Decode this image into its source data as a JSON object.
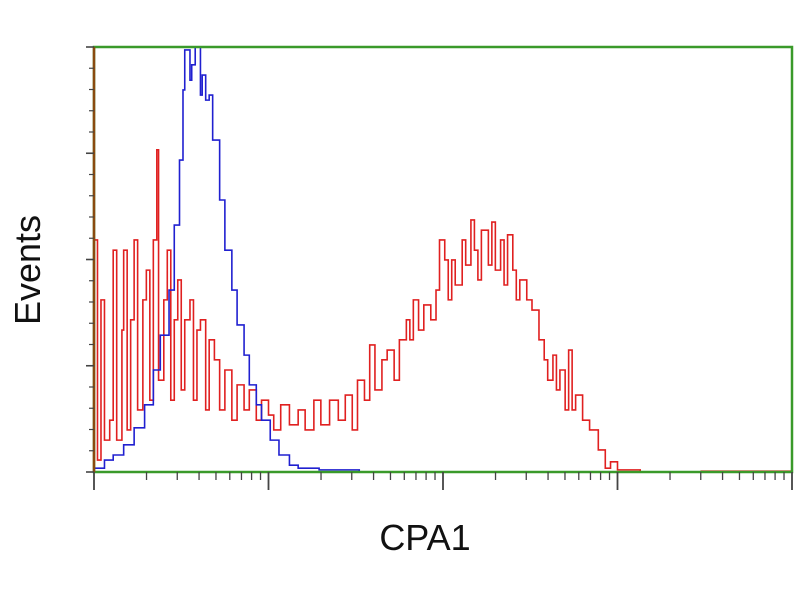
{
  "chart_data": {
    "type": "line",
    "title": "",
    "xlabel": "CPA1",
    "ylabel": "Events",
    "x_scale": "log",
    "x_decades": [
      0,
      4
    ],
    "ylim": [
      0,
      100
    ],
    "grid": false,
    "legend": "none",
    "colors": {
      "frame": "#3a9a2a",
      "left_axis": "#8a4a10",
      "series_red": "#e02020",
      "series_blue": "#2020d0"
    },
    "series": [
      {
        "color": "#e02020",
        "points": [
          [
            0.0,
            54.6
          ],
          [
            0.02,
            2.8
          ],
          [
            0.04,
            40.5
          ],
          [
            0.06,
            7.5
          ],
          [
            0.09,
            12.2
          ],
          [
            0.11,
            52.2
          ],
          [
            0.13,
            7.5
          ],
          [
            0.16,
            33.4
          ],
          [
            0.17,
            52.2
          ],
          [
            0.19,
            9.9
          ],
          [
            0.21,
            35.8
          ],
          [
            0.23,
            54.6
          ],
          [
            0.25,
            14.6
          ],
          [
            0.28,
            40.5
          ],
          [
            0.3,
            47.5
          ],
          [
            0.32,
            16.9
          ],
          [
            0.34,
            54.6
          ],
          [
            0.36,
            75.8
          ],
          [
            0.37,
            21.6
          ],
          [
            0.4,
            40.5
          ],
          [
            0.42,
            52.2
          ],
          [
            0.44,
            16.9
          ],
          [
            0.46,
            35.8
          ],
          [
            0.48,
            45.2
          ],
          [
            0.5,
            19.3
          ],
          [
            0.52,
            35.8
          ],
          [
            0.55,
            40.5
          ],
          [
            0.57,
            16.9
          ],
          [
            0.59,
            33.4
          ],
          [
            0.61,
            35.8
          ],
          [
            0.64,
            14.6
          ],
          [
            0.66,
            31.1
          ],
          [
            0.69,
            26.4
          ],
          [
            0.72,
            14.6
          ],
          [
            0.75,
            24.0
          ],
          [
            0.79,
            12.2
          ],
          [
            0.82,
            20.5
          ],
          [
            0.86,
            14.6
          ],
          [
            0.89,
            19.3
          ],
          [
            0.93,
            12.2
          ],
          [
            0.96,
            16.9
          ],
          [
            1.0,
            13.4
          ],
          [
            1.03,
            9.9
          ],
          [
            1.07,
            15.8
          ],
          [
            1.12,
            11.1
          ],
          [
            1.17,
            14.6
          ],
          [
            1.21,
            9.9
          ],
          [
            1.26,
            16.9
          ],
          [
            1.3,
            11.1
          ],
          [
            1.35,
            16.9
          ],
          [
            1.4,
            12.2
          ],
          [
            1.44,
            18.1
          ],
          [
            1.48,
            9.9
          ],
          [
            1.51,
            21.6
          ],
          [
            1.55,
            16.9
          ],
          [
            1.58,
            29.9
          ],
          [
            1.61,
            19.3
          ],
          [
            1.65,
            26.4
          ],
          [
            1.68,
            28.7
          ],
          [
            1.72,
            21.6
          ],
          [
            1.75,
            31.1
          ],
          [
            1.79,
            35.8
          ],
          [
            1.81,
            31.1
          ],
          [
            1.83,
            40.5
          ],
          [
            1.86,
            33.4
          ],
          [
            1.89,
            39.3
          ],
          [
            1.93,
            35.8
          ],
          [
            1.96,
            42.8
          ],
          [
            1.98,
            54.6
          ],
          [
            2.01,
            49.9
          ],
          [
            2.03,
            40.5
          ],
          [
            2.05,
            49.9
          ],
          [
            2.07,
            44.0
          ],
          [
            2.11,
            54.6
          ],
          [
            2.13,
            48.7
          ],
          [
            2.16,
            59.3
          ],
          [
            2.18,
            52.2
          ],
          [
            2.2,
            45.2
          ],
          [
            2.22,
            56.9
          ],
          [
            2.26,
            48.7
          ],
          [
            2.28,
            58.8
          ],
          [
            2.3,
            47.5
          ],
          [
            2.33,
            54.6
          ],
          [
            2.35,
            44.0
          ],
          [
            2.37,
            55.8
          ],
          [
            2.4,
            47.5
          ],
          [
            2.42,
            40.5
          ],
          [
            2.44,
            45.2
          ],
          [
            2.48,
            40.5
          ],
          [
            2.51,
            38.1
          ],
          [
            2.55,
            31.1
          ],
          [
            2.58,
            26.4
          ],
          [
            2.6,
            21.6
          ],
          [
            2.63,
            27.5
          ],
          [
            2.65,
            19.3
          ],
          [
            2.67,
            24.0
          ],
          [
            2.7,
            14.6
          ],
          [
            2.72,
            28.7
          ],
          [
            2.74,
            14.6
          ],
          [
            2.76,
            18.1
          ],
          [
            2.8,
            12.2
          ],
          [
            2.84,
            9.9
          ],
          [
            2.89,
            5.2
          ],
          [
            2.93,
            0.9
          ],
          [
            2.96,
            2.4
          ],
          [
            3.0,
            0.5
          ],
          [
            3.13,
            0
          ],
          [
            3.48,
            0.2
          ],
          [
            4.0,
            0.2
          ]
        ]
      },
      {
        "color": "#2020d0",
        "points": [
          [
            0.0,
            0.9
          ],
          [
            0.06,
            2.8
          ],
          [
            0.11,
            4.0
          ],
          [
            0.17,
            6.4
          ],
          [
            0.23,
            10.4
          ],
          [
            0.29,
            15.8
          ],
          [
            0.34,
            24.0
          ],
          [
            0.38,
            32.2
          ],
          [
            0.43,
            42.8
          ],
          [
            0.46,
            58.1
          ],
          [
            0.49,
            73.4
          ],
          [
            0.51,
            89.9
          ],
          [
            0.52,
            99.3
          ],
          [
            0.55,
            92.2
          ],
          [
            0.56,
            95.8
          ],
          [
            0.58,
            100
          ],
          [
            0.61,
            88.7
          ],
          [
            0.62,
            93.4
          ],
          [
            0.64,
            87.5
          ],
          [
            0.66,
            88.7
          ],
          [
            0.68,
            78.1
          ],
          [
            0.72,
            64.0
          ],
          [
            0.75,
            52.2
          ],
          [
            0.79,
            42.8
          ],
          [
            0.82,
            34.6
          ],
          [
            0.86,
            27.5
          ],
          [
            0.89,
            20.5
          ],
          [
            0.93,
            15.8
          ],
          [
            0.96,
            12.2
          ],
          [
            1.01,
            7.5
          ],
          [
            1.06,
            4.0
          ],
          [
            1.12,
            1.6
          ],
          [
            1.17,
            0.9
          ],
          [
            1.29,
            0.5
          ],
          [
            1.52,
            0.2
          ]
        ]
      }
    ]
  }
}
